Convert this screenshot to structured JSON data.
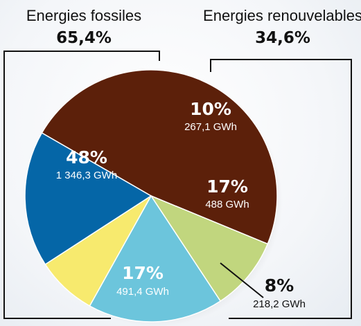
{
  "chart_data": {
    "type": "pie",
    "groups": [
      {
        "name": "Energies fossiles",
        "total": "65,4%"
      },
      {
        "name": "Energies renouvelables",
        "total": "34,6%"
      }
    ],
    "slices": [
      {
        "pct_label": "48%",
        "value_label": "1 346,3 GWh",
        "value": 1346.3,
        "group": "Energies fossiles",
        "color": "#5c200a",
        "text_color": "#ffffff"
      },
      {
        "pct_label": "10%",
        "value_label": "267,1 GWh",
        "value": 267.1,
        "group": "Energies renouvelables",
        "color": "#c1d67e",
        "text_color": "#ffffff"
      },
      {
        "pct_label": "17%",
        "value_label": "488 GWh",
        "value": 488,
        "group": "Energies renouvelables",
        "color": "#6cc5dc",
        "text_color": "#ffffff"
      },
      {
        "pct_label": "8%",
        "value_label": "218,2 GWh",
        "value": 218.2,
        "group": "Energies renouvelables",
        "color": "#f7ea6e",
        "text_color": "#111111"
      },
      {
        "pct_label": "17%",
        "value_label": "491,4 GWh",
        "value": 491.4,
        "group": "Energies fossiles",
        "color": "#0566a7",
        "text_color": "#ffffff"
      }
    ]
  }
}
